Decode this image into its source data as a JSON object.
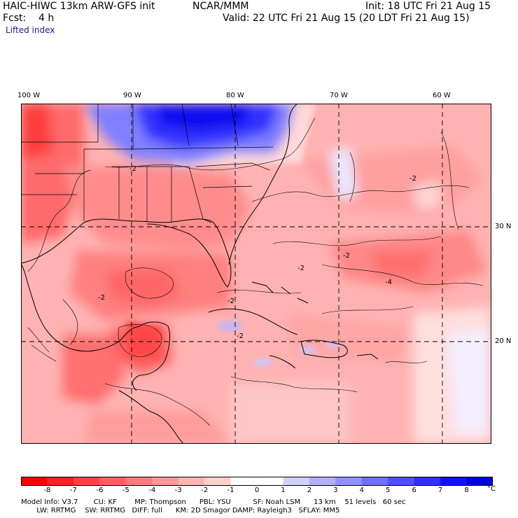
{
  "header": {
    "model_title": "HAIC-HIWC 13km ARW-GFS init",
    "org": "NCAR/MMM",
    "init": "Init: 18 UTC Fri 21 Aug 15",
    "forecast": "Fcst:    4 h",
    "valid": "Valid: 22 UTC Fri 21 Aug 15 (20 LDT Fri 21 Aug 15)",
    "field": "Lifted index"
  },
  "map": {
    "lon_labels": [
      "100 W",
      "90 W",
      "80 W",
      "70 W",
      "60 W"
    ],
    "lat_labels": [
      "30 N",
      "20 N"
    ],
    "contour_labels": [
      "-2",
      "-2",
      "-2",
      "-2",
      "-4",
      "-2",
      "-2",
      "-2"
    ]
  },
  "colorbar": {
    "ticks": [
      "-8",
      "-7",
      "-6",
      "-5",
      "-4",
      "-3",
      "-2",
      "-1",
      "0",
      "1",
      "2",
      "3",
      "4",
      "5",
      "6",
      "7",
      "8"
    ],
    "unit": "°C",
    "colors": [
      "#ff0000",
      "#ff2222",
      "#ff4444",
      "#ff6060",
      "#ff7c7c",
      "#ff9898",
      "#ffb4b4",
      "#ffd0d0",
      "#ffffff",
      "#ffffff",
      "#d0d0ff",
      "#b0b0ff",
      "#9090ff",
      "#7070ff",
      "#5050ff",
      "#3030ff",
      "#1010ff",
      "#0000dd"
    ]
  },
  "footer": {
    "line1": "Model Info: V3.7       CU: KF        MP: Thompson      PBL: YSU          SF: Noah LSM      13 km    51 levels   60 sec",
    "line2": "       LW: RRTMG    SW: RRTMG   DIFF: full      KM: 2D Smagor DAMP: Rayleigh3   SFLAY: MM5"
  }
}
